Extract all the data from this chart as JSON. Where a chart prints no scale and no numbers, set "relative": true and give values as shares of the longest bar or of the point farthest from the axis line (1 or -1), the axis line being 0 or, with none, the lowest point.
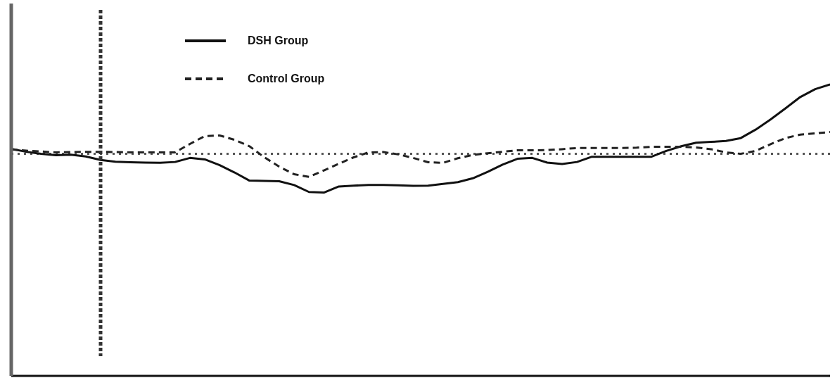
{
  "chart_data": {
    "type": "line",
    "relative": true,
    "categories": [
      null,
      null,
      null,
      null,
      null,
      null,
      null,
      null,
      null,
      null,
      null,
      null,
      null,
      null,
      null,
      null,
      null,
      null,
      null,
      null,
      null,
      null,
      null,
      null,
      null,
      null,
      null,
      null,
      null,
      null,
      null,
      null,
      null,
      null,
      null,
      null,
      null,
      null,
      null,
      null,
      null,
      null,
      null,
      null,
      null,
      null,
      null,
      null,
      null,
      null,
      null,
      null,
      null,
      null,
      null,
      null
    ],
    "series": [
      {
        "name": "DSH Group",
        "color": "#111111",
        "line_style": "solid",
        "values": [
          0.779,
          0.769,
          0.762,
          0.757,
          0.759,
          0.753,
          0.741,
          0.735,
          0.733,
          0.732,
          0.731,
          0.734,
          0.748,
          0.743,
          0.723,
          0.698,
          0.67,
          0.669,
          0.668,
          0.655,
          0.631,
          0.629,
          0.65,
          0.653,
          0.655,
          0.655,
          0.654,
          0.652,
          0.653,
          0.659,
          0.665,
          0.678,
          0.7,
          0.725,
          0.745,
          0.748,
          0.732,
          0.727,
          0.734,
          0.752,
          0.752,
          0.752,
          0.752,
          0.752,
          0.772,
          0.788,
          0.8,
          0.803,
          0.806,
          0.816,
          0.845,
          0.88,
          0.918,
          0.957,
          0.984,
          1
        ]
      },
      {
        "name": "Control Group",
        "color": "#222222",
        "line_style": "dashed",
        "values": [
          0.777,
          0.773,
          0.77,
          0.767,
          0.768,
          0.769,
          0.769,
          0.768,
          0.767,
          0.767,
          0.767,
          0.767,
          0.796,
          0.823,
          0.825,
          0.81,
          0.788,
          0.75,
          0.718,
          0.692,
          0.683,
          0.705,
          0.728,
          0.75,
          0.767,
          0.768,
          0.76,
          0.748,
          0.733,
          0.731,
          0.747,
          0.758,
          0.764,
          0.769,
          0.774,
          0.774,
          0.775,
          0.778,
          0.782,
          0.782,
          0.782,
          0.782,
          0.783,
          0.786,
          0.786,
          0.786,
          0.784,
          0.778,
          0.767,
          0.762,
          0.772,
          0.795,
          0.816,
          0.828,
          0.832,
          0.837
        ]
      }
    ],
    "ref_lines": [
      {
        "axis": "y",
        "value": 0.762,
        "line_style": "dotted",
        "color": "#555555"
      }
    ],
    "legend": "top left"
  }
}
